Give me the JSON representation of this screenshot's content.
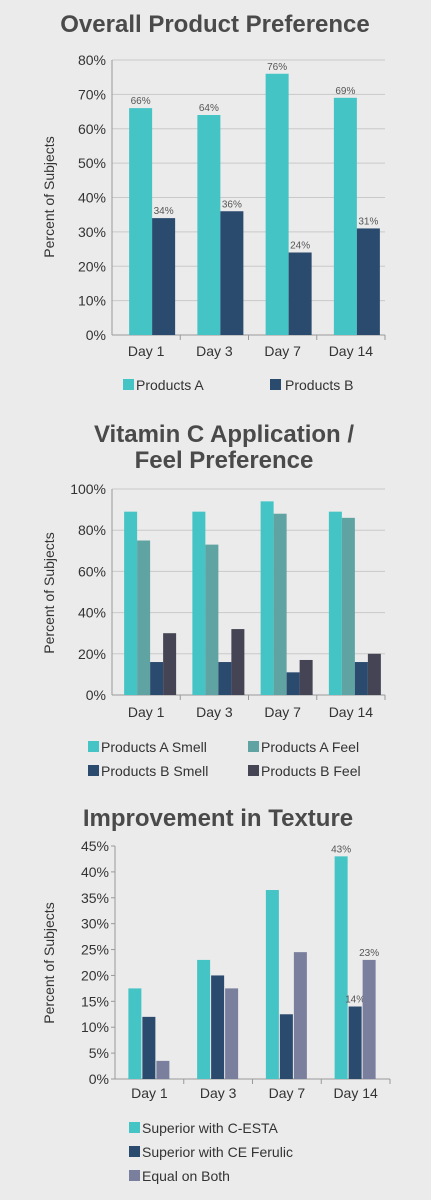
{
  "chart_data": [
    {
      "type": "bar",
      "title": "Overall Product Preference",
      "ylabel": "Percent of Subjects",
      "ylim": [
        0,
        80
      ],
      "yticks": [
        "0%",
        "10%",
        "20%",
        "30%",
        "40%",
        "50%",
        "60%",
        "70%",
        "80%"
      ],
      "categories": [
        "Day 1",
        "Day 3",
        "Day 7",
        "Day 14"
      ],
      "series": [
        {
          "name": "Products A",
          "color": "#45c4c6",
          "values": [
            66,
            64,
            76,
            69
          ],
          "labels": [
            "66%",
            "64%",
            "76%",
            "69%"
          ]
        },
        {
          "name": "Products B",
          "color": "#2a4a6e",
          "values": [
            34,
            36,
            24,
            31
          ],
          "labels": [
            "34%",
            "36%",
            "24%",
            "31%"
          ]
        }
      ],
      "grid": true,
      "legend_position": "bottom"
    },
    {
      "type": "bar",
      "title": "Vitamin C Application / Feel Preference",
      "title_lines": [
        "Vitamin C Application /",
        "Feel Preference"
      ],
      "ylabel": "Percent of Subjects",
      "ylim": [
        0,
        100
      ],
      "yticks": [
        "0%",
        "20%",
        "40%",
        "60%",
        "80%",
        "100%"
      ],
      "categories": [
        "Day 1",
        "Day 3",
        "Day 7",
        "Day 14"
      ],
      "series": [
        {
          "name": "Products A Smell",
          "color": "#45c4c6",
          "values": [
            89,
            89,
            94,
            89
          ]
        },
        {
          "name": "Products A Feel",
          "color": "#5fa3a3",
          "values": [
            75,
            73,
            88,
            86
          ]
        },
        {
          "name": "Products B Smell",
          "color": "#2a4a6e",
          "values": [
            16,
            16,
            11,
            16
          ]
        },
        {
          "name": "Products B Feel",
          "color": "#444455",
          "values": [
            30,
            32,
            17,
            20
          ]
        }
      ],
      "grid": true,
      "legend_position": "bottom"
    },
    {
      "type": "bar",
      "title": "Improvement in Texture",
      "ylabel": "Percent of Subjects",
      "ylim": [
        0,
        45
      ],
      "yticks": [
        "0%",
        "5%",
        "10%",
        "15%",
        "20%",
        "25%",
        "30%",
        "35%",
        "40%",
        "45%"
      ],
      "categories": [
        "Day 1",
        "Day 3",
        "Day 7",
        "Day 14"
      ],
      "series": [
        {
          "name": "Superior with C-ESTA",
          "color": "#45c4c6",
          "values": [
            17.5,
            23,
            36.5,
            43
          ],
          "labels": [
            "",
            "",
            "",
            "43%"
          ]
        },
        {
          "name": "Superior with CE Ferulic",
          "color": "#2a4a6e",
          "values": [
            12,
            20,
            12.5,
            14
          ],
          "labels": [
            "",
            "",
            "",
            "14%"
          ]
        },
        {
          "name": "Equal on Both",
          "color": "#7a7f9e",
          "values": [
            3.5,
            17.5,
            24.5,
            23
          ],
          "labels": [
            "",
            "",
            "",
            "23%"
          ]
        }
      ],
      "grid": false,
      "legend_position": "bottom"
    }
  ]
}
